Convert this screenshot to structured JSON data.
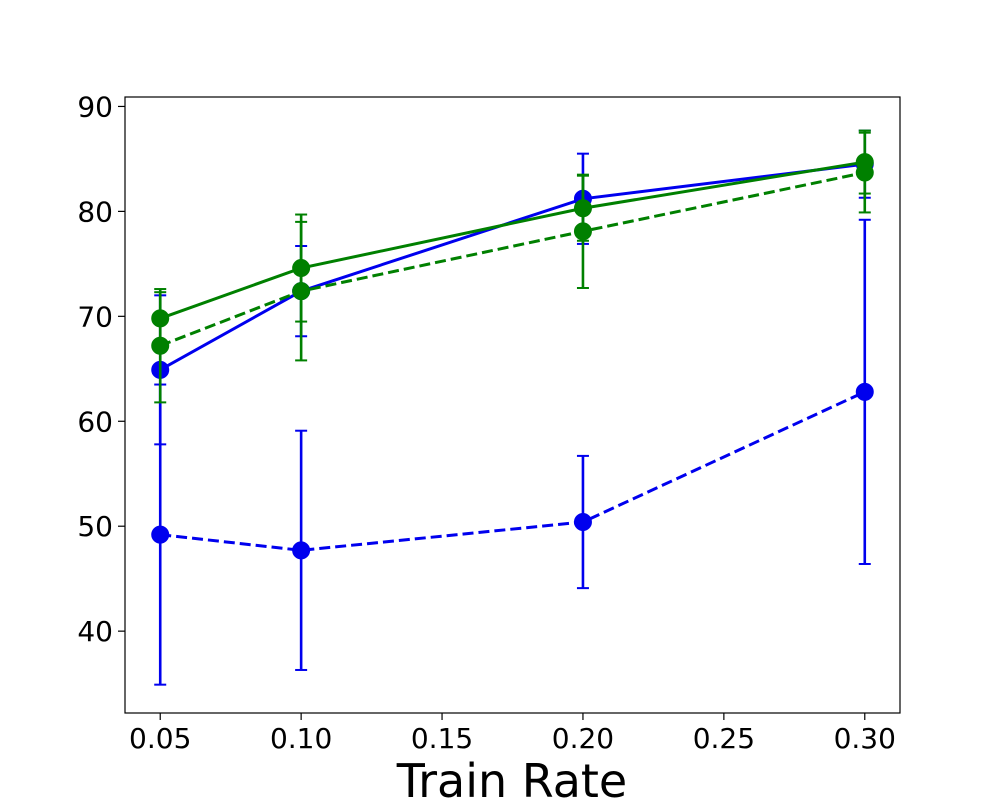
{
  "chart_data": {
    "type": "line",
    "title": "",
    "xlabel": "Train Rate",
    "ylabel": "",
    "xlim": [
      0.0375,
      0.3125
    ],
    "ylim": [
      32.2,
      90.9
    ],
    "x_ticks": [
      0.05,
      0.1,
      0.15,
      0.2,
      0.25,
      0.3
    ],
    "x_tick_labels": [
      "0.05",
      "0.10",
      "0.15",
      "0.20",
      "0.25",
      "0.30"
    ],
    "y_ticks": [
      40,
      50,
      60,
      70,
      80,
      90
    ],
    "y_tick_labels": [
      "40",
      "50",
      "60",
      "70",
      "80",
      "90"
    ],
    "grid": false,
    "x": [
      0.05,
      0.1,
      0.2,
      0.3
    ],
    "series": [
      {
        "name": "blue-solid",
        "color": "#0000ee",
        "linestyle": "solid",
        "values": [
          64.9,
          72.4,
          81.2,
          84.5
        ],
        "errors": [
          7.1,
          4.3,
          4.3,
          3.2
        ]
      },
      {
        "name": "blue-dashed",
        "color": "#0000ee",
        "linestyle": "dashed",
        "values": [
          49.2,
          47.7,
          50.4,
          62.8
        ],
        "errors": [
          14.3,
          11.4,
          6.3,
          16.4
        ]
      },
      {
        "name": "green-solid",
        "color": "#008000",
        "linestyle": "solid",
        "values": [
          69.8,
          74.6,
          80.3,
          84.7
        ],
        "errors": [
          2.5,
          5.1,
          3.1,
          3.0
        ]
      },
      {
        "name": "green-dashed",
        "color": "#008000",
        "linestyle": "dashed",
        "values": [
          67.2,
          72.4,
          78.1,
          83.7
        ],
        "errors": [
          5.4,
          6.6,
          5.4,
          3.8
        ]
      }
    ]
  }
}
